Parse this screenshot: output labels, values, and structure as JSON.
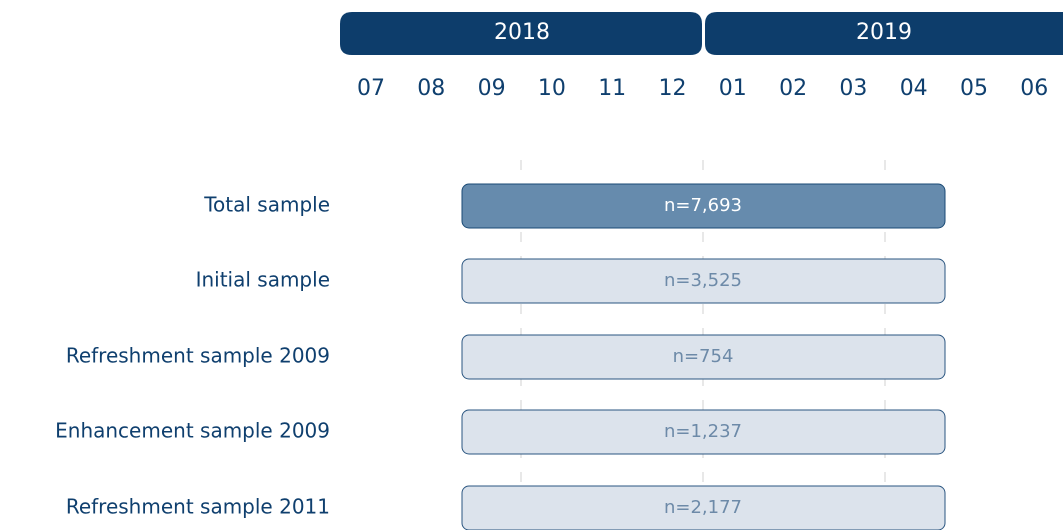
{
  "years": [
    "2018",
    "2019"
  ],
  "months": [
    "07",
    "08",
    "09",
    "10",
    "11",
    "12",
    "01",
    "02",
    "03",
    "04",
    "05",
    "06"
  ],
  "rows": [
    {
      "label": "Total sample",
      "count": "n=7,693"
    },
    {
      "label": "Initial sample",
      "count": "n=3,525"
    },
    {
      "label": "Refreshment sample 2009",
      "count": "n=754"
    },
    {
      "label": "Enhancement sample 2009",
      "count": "n=1,237"
    },
    {
      "label": "Refreshment sample 2011",
      "count": "n=2,177"
    }
  ]
}
